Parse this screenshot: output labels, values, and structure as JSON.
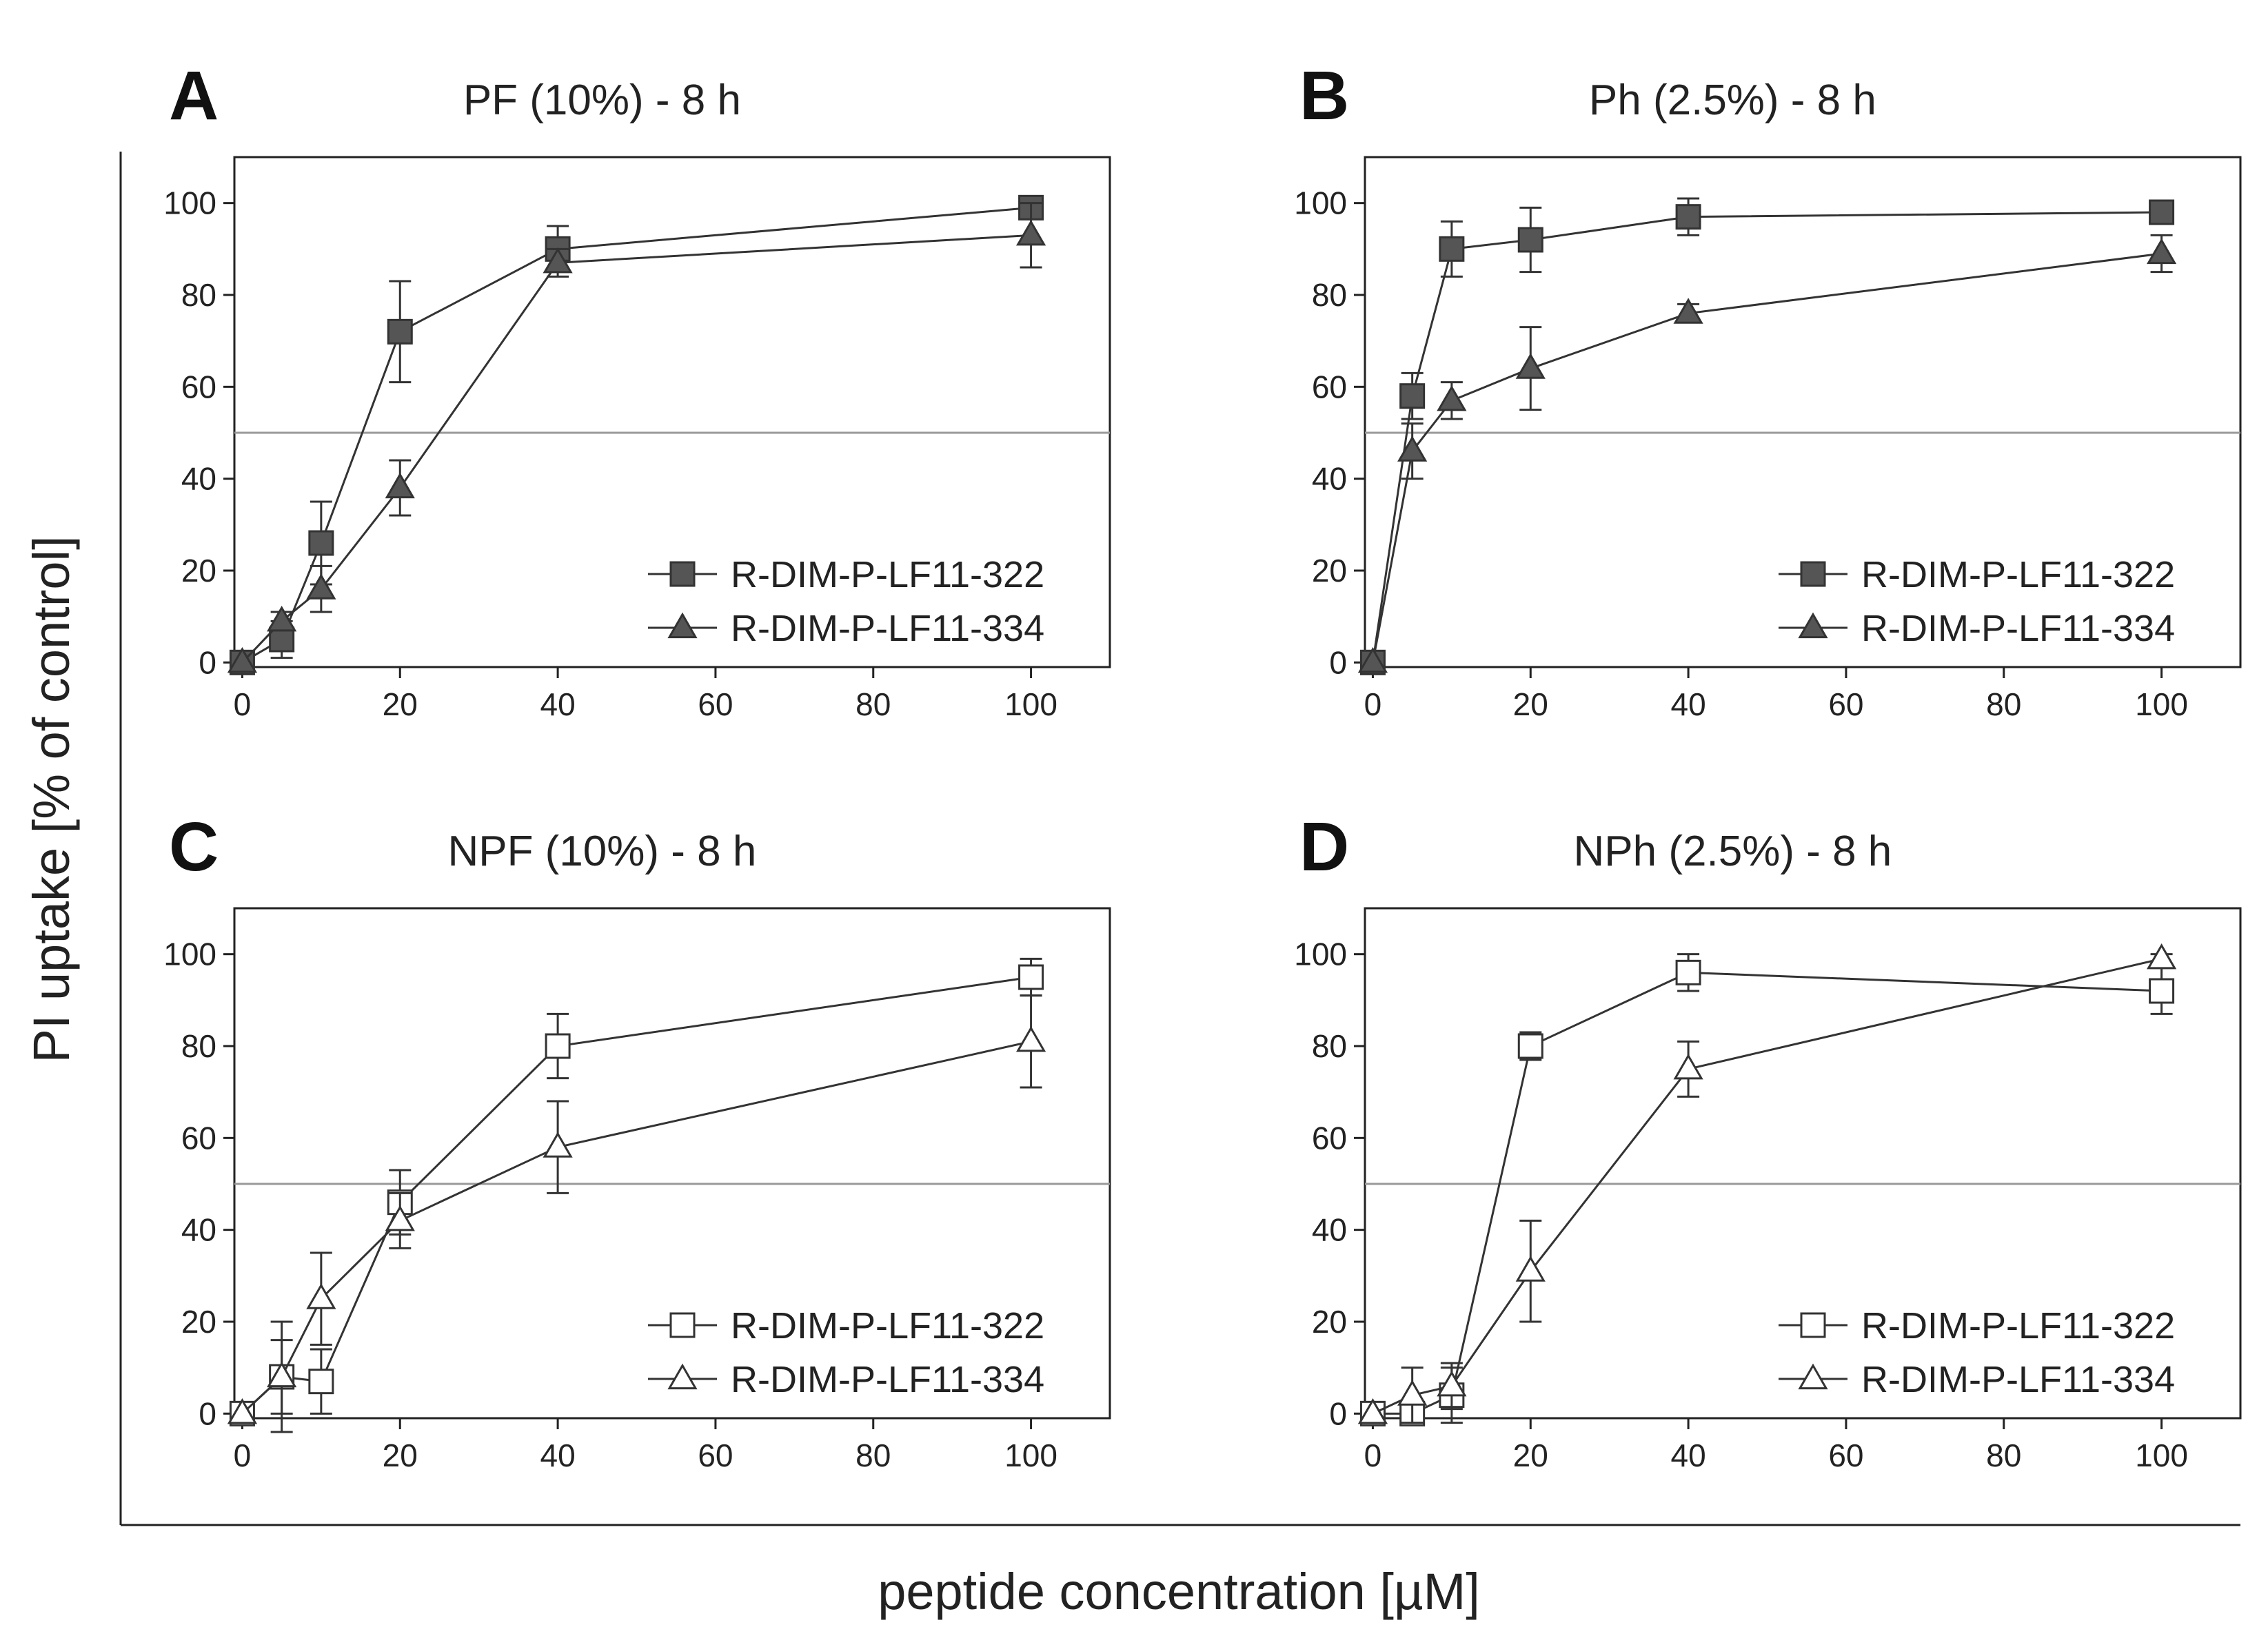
{
  "figure": {
    "ylabel": "PI uptake [% of control]",
    "xlabel": "peptide concentration [µM]"
  },
  "colors": {
    "filled_marker": "#555555",
    "open_marker": "#ffffff",
    "line": "#333333",
    "reference_line": "#9a9a9a",
    "axis": "#222222"
  },
  "chart_data": [
    {
      "panel": "A",
      "type": "line",
      "title": "PF (10%) - 8 h",
      "marker_fill": "filled",
      "x_ticks": [
        0,
        20,
        40,
        60,
        80,
        100
      ],
      "y_ticks": [
        0,
        20,
        40,
        60,
        80,
        100
      ],
      "xlim": [
        -1,
        110
      ],
      "ylim": [
        -1,
        110
      ],
      "reference_y": 50,
      "legend_position": "lower-right",
      "series": [
        {
          "name": "R-DIM-P-LF11-322",
          "marker": "square",
          "x": [
            0,
            5,
            10,
            20,
            40,
            100
          ],
          "y": [
            0,
            5,
            26,
            72,
            90,
            99
          ],
          "err": [
            0,
            4,
            9,
            11,
            5,
            2
          ]
        },
        {
          "name": "R-DIM-P-LF11-334",
          "marker": "triangle",
          "x": [
            0,
            5,
            10,
            20,
            40,
            100
          ],
          "y": [
            0,
            9,
            16,
            38,
            87,
            93
          ],
          "err": [
            0,
            2,
            5,
            6,
            3,
            7
          ]
        }
      ]
    },
    {
      "panel": "B",
      "type": "line",
      "title": "Ph (2.5%) - 8 h",
      "marker_fill": "filled",
      "x_ticks": [
        0,
        20,
        40,
        60,
        80,
        100
      ],
      "y_ticks": [
        0,
        20,
        40,
        60,
        80,
        100
      ],
      "xlim": [
        -1,
        110
      ],
      "ylim": [
        -1,
        110
      ],
      "reference_y": 50,
      "legend_position": "lower-right",
      "series": [
        {
          "name": "R-DIM-P-LF11-322",
          "marker": "square",
          "x": [
            0,
            5,
            10,
            20,
            40,
            100
          ],
          "y": [
            0,
            58,
            90,
            92,
            97,
            98
          ],
          "err": [
            0,
            5,
            6,
            7,
            4,
            2
          ]
        },
        {
          "name": "R-DIM-P-LF11-334",
          "marker": "triangle",
          "x": [
            0,
            5,
            10,
            20,
            40,
            100
          ],
          "y": [
            0,
            46,
            57,
            64,
            76,
            89
          ],
          "err": [
            0,
            6,
            4,
            9,
            2,
            4
          ]
        }
      ]
    },
    {
      "panel": "C",
      "type": "line",
      "title": "NPF (10%) - 8 h",
      "marker_fill": "open",
      "x_ticks": [
        0,
        20,
        40,
        60,
        80,
        100
      ],
      "y_ticks": [
        0,
        20,
        40,
        60,
        80,
        100
      ],
      "xlim": [
        -1,
        110
      ],
      "ylim": [
        -1,
        110
      ],
      "reference_y": 50,
      "legend_position": "lower-right",
      "series": [
        {
          "name": "R-DIM-P-LF11-322",
          "marker": "square",
          "x": [
            0,
            5,
            10,
            20,
            40,
            100
          ],
          "y": [
            0,
            8,
            7,
            46,
            80,
            95
          ],
          "err": [
            0,
            12,
            7,
            7,
            7,
            4
          ]
        },
        {
          "name": "R-DIM-P-LF11-334",
          "marker": "triangle",
          "x": [
            0,
            5,
            10,
            20,
            40,
            100
          ],
          "y": [
            0,
            8,
            25,
            42,
            58,
            81
          ],
          "err": [
            0,
            8,
            10,
            6,
            10,
            10
          ]
        }
      ]
    },
    {
      "panel": "D",
      "type": "line",
      "title": "NPh (2.5%) - 8 h",
      "marker_fill": "open",
      "x_ticks": [
        0,
        20,
        40,
        60,
        80,
        100
      ],
      "y_ticks": [
        0,
        20,
        40,
        60,
        80,
        100
      ],
      "xlim": [
        -1,
        110
      ],
      "ylim": [
        -1,
        110
      ],
      "reference_y": 50,
      "legend_position": "lower-right",
      "series": [
        {
          "name": "R-DIM-P-LF11-322",
          "marker": "square",
          "x": [
            0,
            5,
            10,
            20,
            40,
            100
          ],
          "y": [
            0,
            0,
            4,
            80,
            96,
            92
          ],
          "err": [
            0,
            0,
            6,
            3,
            4,
            5
          ]
        },
        {
          "name": "R-DIM-P-LF11-334",
          "marker": "triangle",
          "x": [
            0,
            5,
            10,
            20,
            40,
            100
          ],
          "y": [
            0,
            4,
            6,
            31,
            75,
            99
          ],
          "err": [
            0,
            6,
            5,
            11,
            6,
            1
          ]
        }
      ]
    }
  ]
}
